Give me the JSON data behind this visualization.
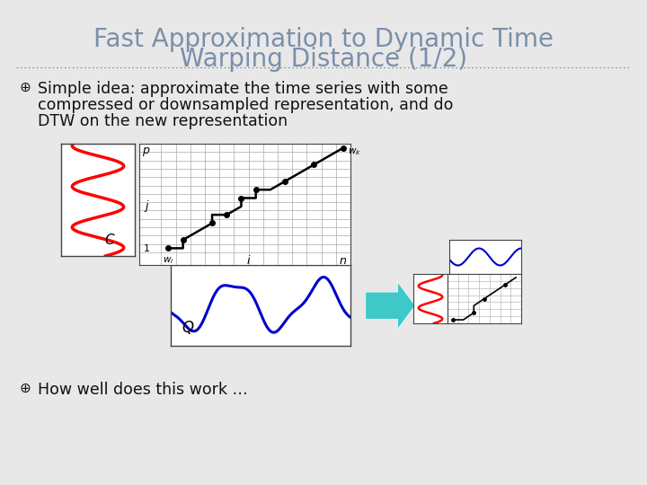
{
  "title_line1": "Fast Approximation to Dynamic Time",
  "title_line2": "Warping Distance (1/2)",
  "title_color": "#7a8faa",
  "title_fontsize": 20,
  "bg_color": "#dcdcdc",
  "slide_bg": "#e8e8e8",
  "bullet1_line1": "Simple idea: approximate the time series with some",
  "bullet1_line2": "compressed or downsampled representation, and do",
  "bullet1_line3": "DTW on the new representation",
  "bullet2": "How well does this work …",
  "bullet_color": "#111111",
  "bullet_fontsize": 12.5,
  "separator_color": "#888888",
  "arrow_color": "#3ec8c8"
}
